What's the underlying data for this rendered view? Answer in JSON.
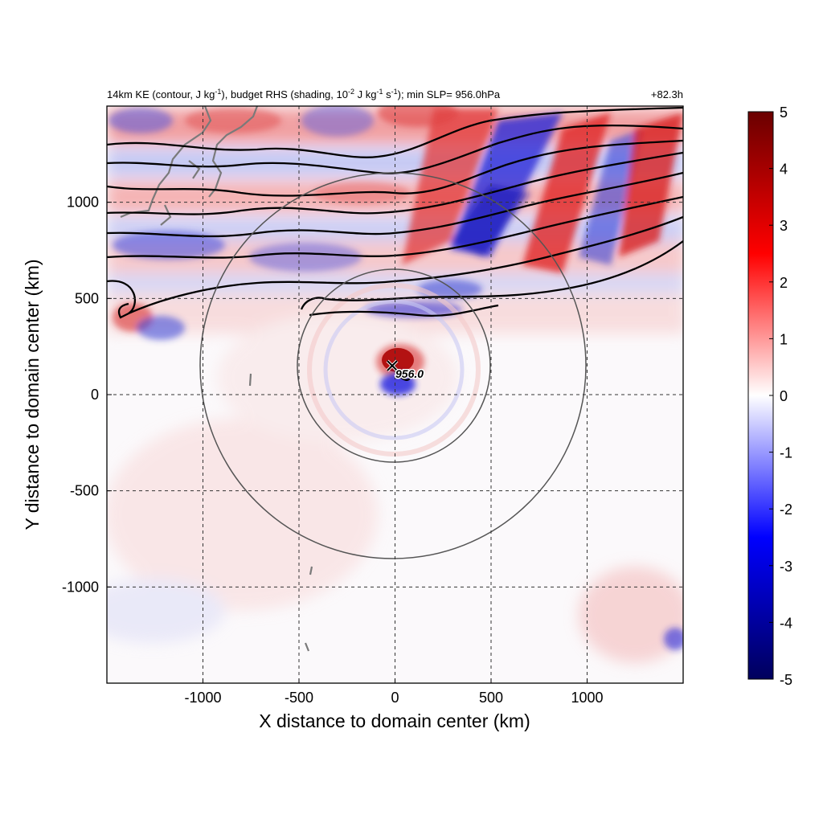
{
  "chart_data": {
    "type": "heatmap",
    "title_parts": {
      "a": "14km KE (contour, J kg",
      "a_sup": "-1",
      "b": "), budget RHS (shading, 10",
      "b_sup": "-2",
      "c": " J kg",
      "c_sup": "-1",
      "d": " s",
      "d_sup": "-1",
      "e": "); min SLP= 956.0hPa"
    },
    "time_label": "+82.3h",
    "xlabel": "X distance to domain center (km)",
    "ylabel": "Y distance to domain center (km)",
    "xlim": [
      -1500,
      1500
    ],
    "ylim": [
      -1500,
      1500
    ],
    "xticks": [
      -1000,
      -500,
      0,
      500,
      1000
    ],
    "yticks": [
      -1000,
      -500,
      0,
      500,
      1000
    ],
    "grid": "dashed",
    "colorbar": {
      "range": [
        -5,
        5
      ],
      "ticks": [
        5,
        4,
        3,
        2,
        1,
        0,
        -1,
        -2,
        -3,
        -4,
        -5
      ],
      "colormap": [
        "#00005c",
        "#0000ff",
        "#ffffff",
        "#ff0000",
        "#6a0000"
      ]
    },
    "storm_center": {
      "x": -10,
      "y": 150,
      "marker": "x"
    },
    "min_slp_label": "956.0",
    "range_circles": [
      {
        "center": [
          0,
          150
        ],
        "radius_km": 500
      },
      {
        "center": [
          0,
          150
        ],
        "radius_km": 1000
      }
    ],
    "shading_features": [
      {
        "x": -50,
        "y": 300,
        "value": 0,
        "note": ""
      }
    ]
  },
  "colors": {
    "positive": "#e8242b",
    "negative": "#1f2fe0",
    "contour": "#000000",
    "coast": "#7a7a7a",
    "circle": "#555555"
  }
}
